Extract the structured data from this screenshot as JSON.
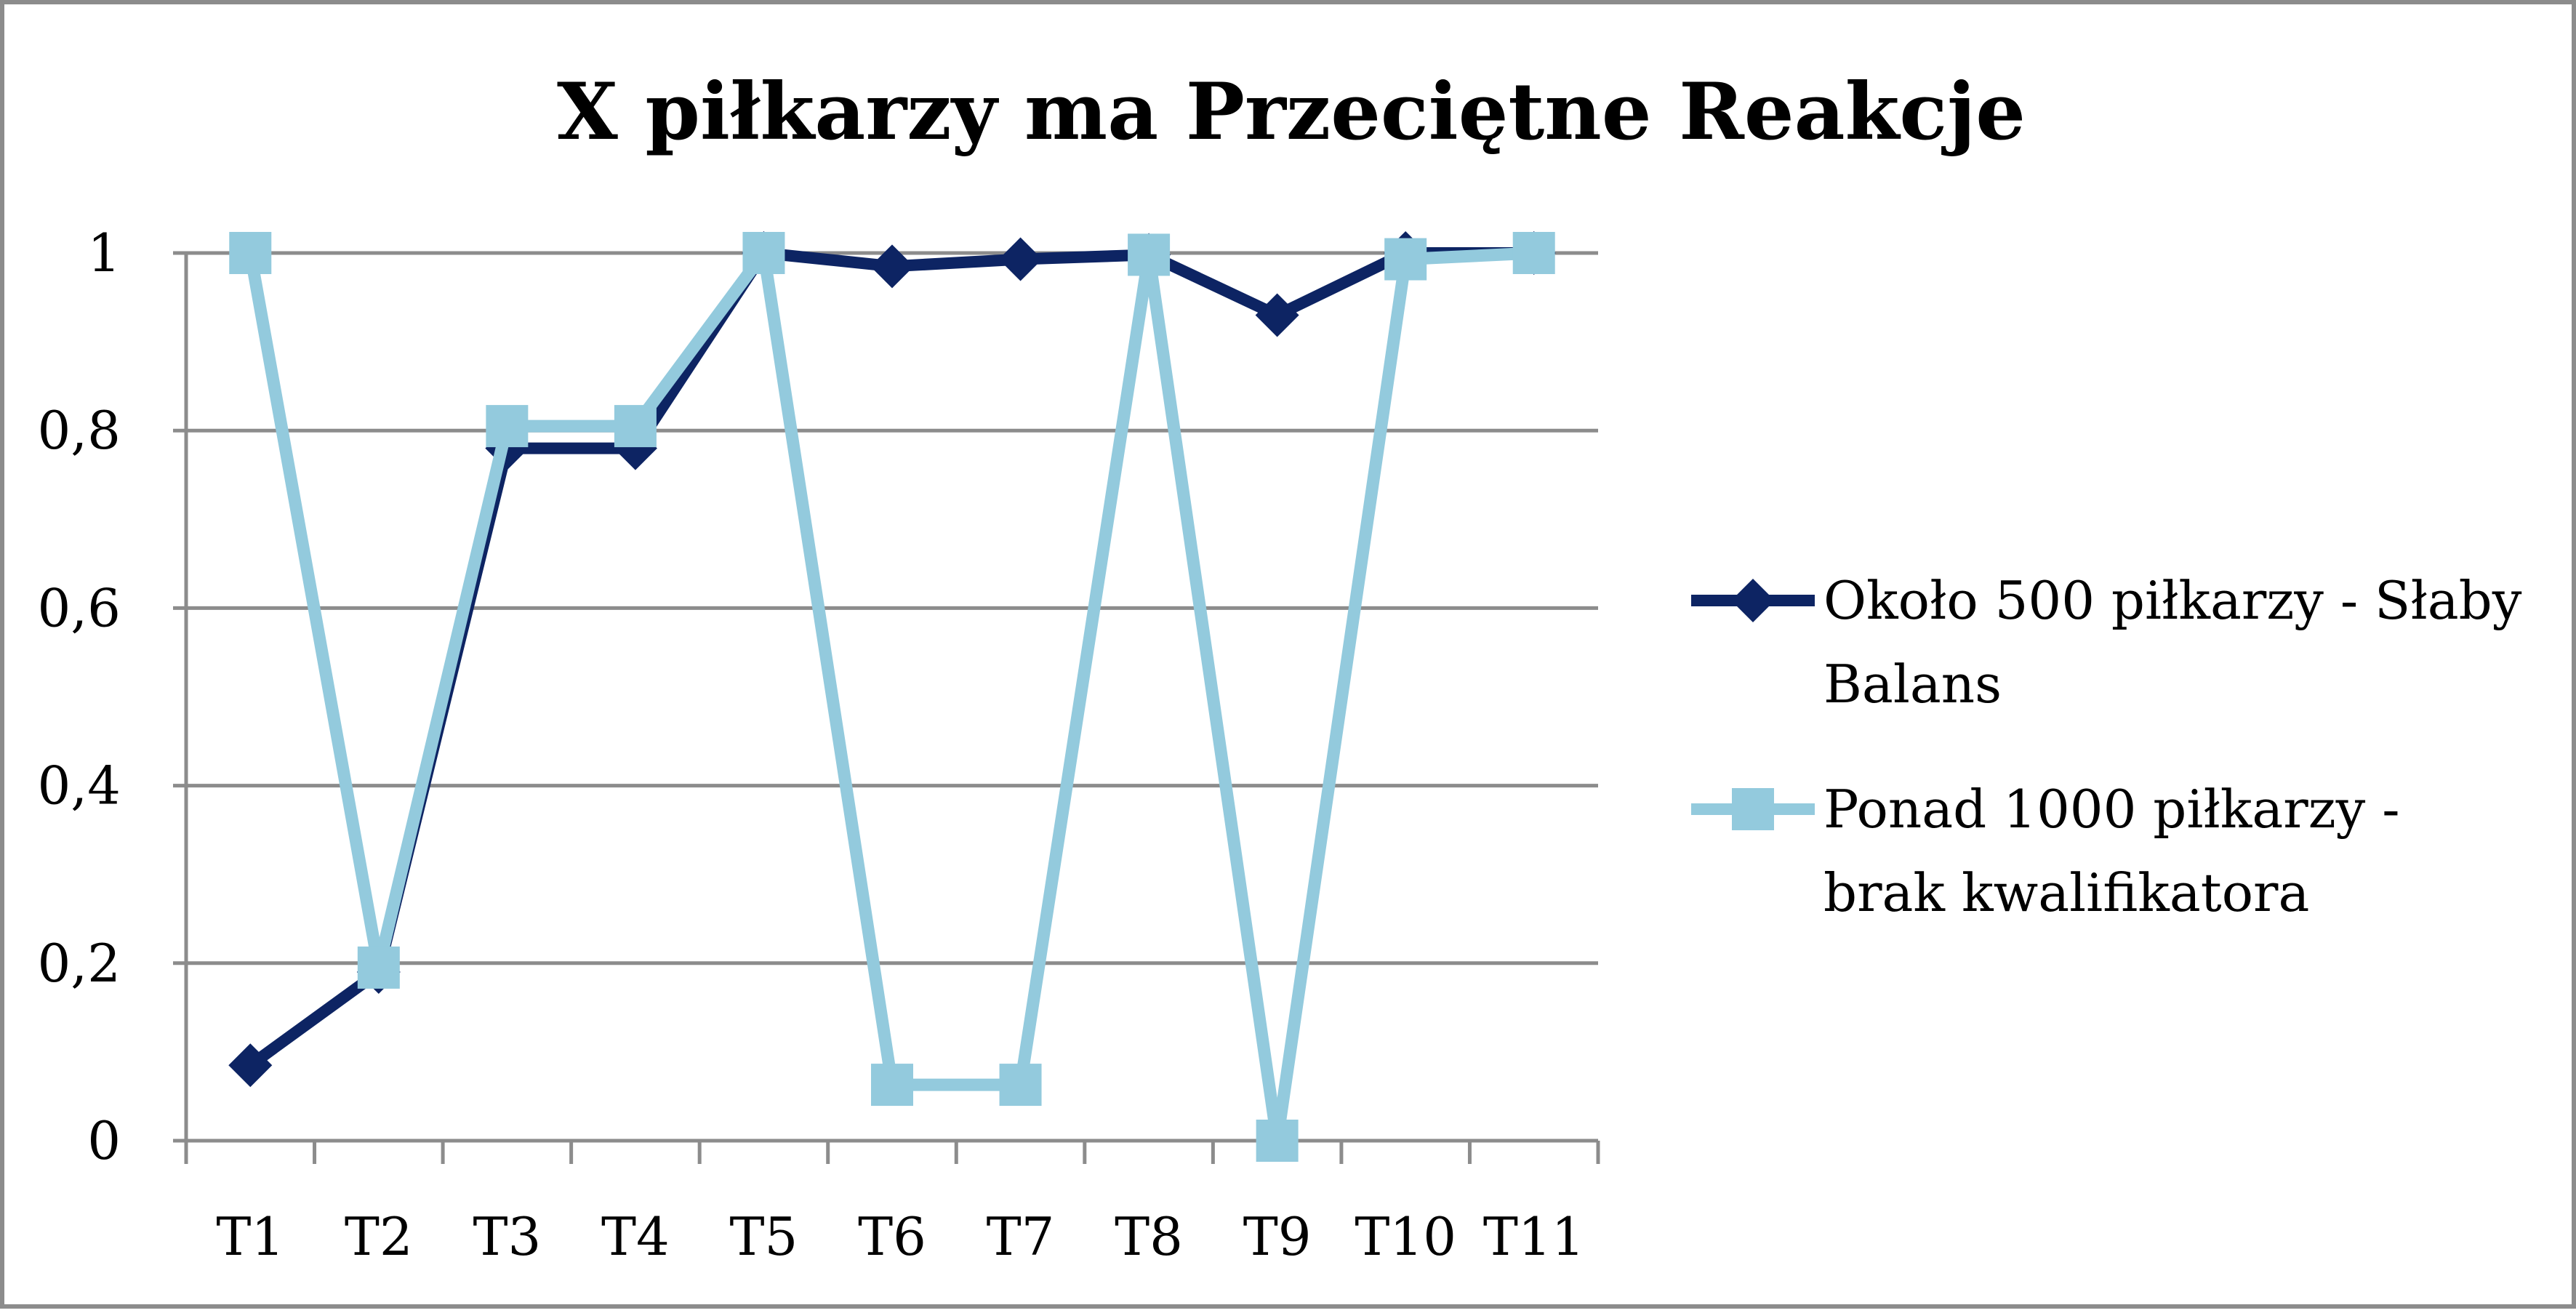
{
  "chart_data": {
    "type": "line",
    "title": "X piłkarzy ma Przeciętne Reakcje",
    "xlabel": "",
    "ylabel": "",
    "categories": [
      "T1",
      "T2",
      "T3",
      "T4",
      "T5",
      "T6",
      "T7",
      "T8",
      "T9",
      "T10",
      "T11"
    ],
    "y_ticks": [
      "0",
      "0,2",
      "0,4",
      "0,6",
      "0,8",
      "1"
    ],
    "ylim": [
      0,
      1
    ],
    "grid": true,
    "legend_position": "right",
    "series": [
      {
        "name": "Około 500 piłkarzy - Słaby Balans",
        "legend_lines": [
          "Około 500 piłkarzy - Słaby",
          "Balans"
        ],
        "color": "#0d2463",
        "marker": "diamond",
        "values": [
          0.085,
          0.19,
          0.78,
          0.78,
          1.0,
          0.985,
          0.993,
          0.998,
          0.93,
          1.0,
          1.0
        ]
      },
      {
        "name": "Ponad 1000 piłkarzy - brak kwalifikatora",
        "legend_lines": [
          "Ponad 1000 piłkarzy -",
          "brak kwalifikatora"
        ],
        "color": "#93cadd",
        "marker": "square",
        "values": [
          1.0,
          0.195,
          0.805,
          0.805,
          1.0,
          0.063,
          0.063,
          0.998,
          0.0,
          0.993,
          1.0
        ]
      }
    ]
  }
}
